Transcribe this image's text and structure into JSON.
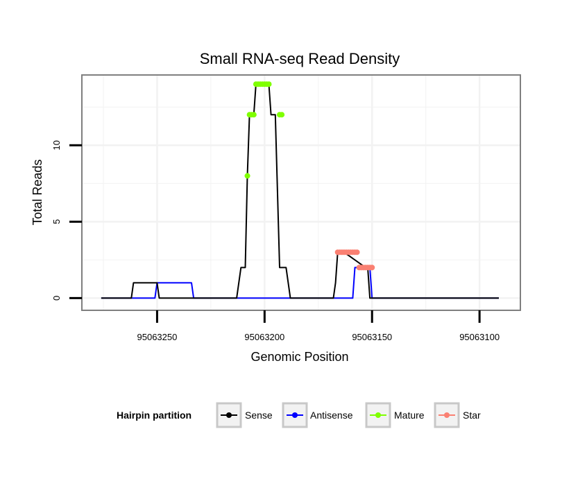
{
  "chart_data": {
    "type": "line",
    "title": "Small RNA-seq Read Density",
    "xlabel": "Genomic Position",
    "ylabel": "Total Reads",
    "x_reversed": true,
    "xlim": [
      95063285,
      95063081
    ],
    "ylim": [
      -0.8,
      14.6
    ],
    "xticks": [
      95063250,
      95063200,
      95063150,
      95063100
    ],
    "xtick_labels": [
      "95063250",
      "95063200",
      "95063150",
      "95063100"
    ],
    "yticks": [
      0,
      5,
      10
    ],
    "ytick_labels": [
      "0",
      "5",
      "10"
    ],
    "grid": true,
    "legend": {
      "title": "Hairpin partition",
      "position": "bottom",
      "entries": [
        {
          "label": "Sense",
          "color": "#000000"
        },
        {
          "label": "Antisense",
          "color": "#0000ff"
        },
        {
          "label": "Mature",
          "color": "#7fff00"
        },
        {
          "label": "Star",
          "color": "#fa8072"
        }
      ]
    },
    "series": [
      {
        "name": "Sense",
        "color": "#000000",
        "kind": "line",
        "x": [
          95063276,
          95063262,
          95063261,
          95063252,
          95063251,
          95063250,
          95063249,
          95063240,
          95063213,
          95063211,
          95063209,
          95063208,
          95063207,
          95063205,
          95063204,
          95063198,
          95063197,
          95063195,
          95063193,
          95063192,
          95063190,
          95063188,
          95063186,
          95063176,
          95063168,
          95063167,
          95063166,
          95063163,
          95063153,
          95063152,
          95063151,
          95063091
        ],
        "y": [
          0,
          0,
          1,
          1,
          1,
          1,
          0,
          0,
          0,
          2,
          2,
          8,
          12,
          12,
          14,
          14,
          12,
          12,
          2,
          2,
          2,
          0,
          0,
          0,
          0,
          1,
          3,
          3,
          2,
          2,
          0,
          0
        ]
      },
      {
        "name": "Antisense",
        "color": "#0000ff",
        "kind": "line",
        "x": [
          95063276,
          95063251,
          95063250,
          95063234,
          95063233,
          95063159,
          95063158,
          95063151,
          95063150,
          95063091
        ],
        "y": [
          0,
          0,
          1,
          1,
          0,
          0,
          2,
          2,
          0,
          0
        ]
      },
      {
        "name": "Mature",
        "color": "#7fff00",
        "kind": "points",
        "x": [
          95063208,
          95063207,
          95063206,
          95063205,
          95063204,
          95063203,
          95063202,
          95063201,
          95063200,
          95063199,
          95063198,
          95063193,
          95063192
        ],
        "y": [
          8,
          12,
          12,
          12,
          14,
          14,
          14,
          14,
          14,
          14,
          14,
          12,
          12
        ]
      },
      {
        "name": "Star",
        "color": "#fa8072",
        "kind": "points",
        "x": [
          95063166,
          95063165,
          95063164,
          95063163,
          95063162,
          95063161,
          95063160,
          95063159,
          95063158,
          95063157,
          95063156,
          95063155,
          95063154,
          95063153,
          95063152,
          95063151,
          95063150
        ],
        "y": [
          3,
          3,
          3,
          3,
          3,
          3,
          3,
          3,
          3,
          3,
          2,
          2,
          2,
          2,
          2,
          2,
          2
        ]
      }
    ]
  }
}
